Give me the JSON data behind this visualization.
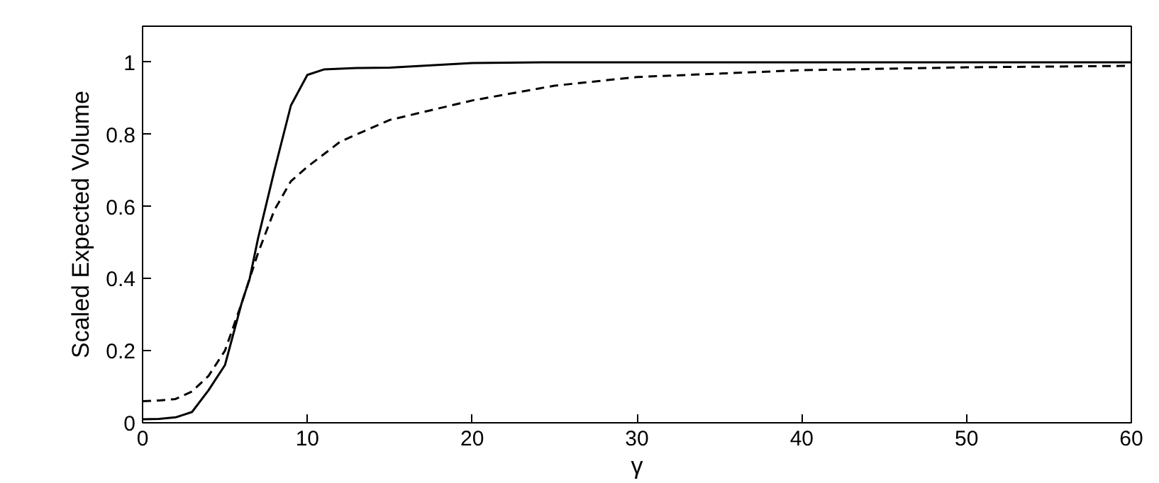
{
  "chart_data": {
    "type": "line",
    "xlabel": "γ",
    "ylabel": "Scaled Expected Volume",
    "xlim": [
      0,
      60
    ],
    "ylim": [
      0,
      1.1
    ],
    "xticks": [
      0,
      10,
      20,
      30,
      40,
      50,
      60
    ],
    "yticks": [
      0,
      0.2,
      0.4,
      0.6,
      0.8,
      1
    ],
    "grid": false,
    "series": [
      {
        "color": "#000000",
        "line_style": "solid",
        "x": [
          0,
          1,
          2,
          3,
          4,
          5,
          6,
          6.5,
          7,
          8,
          9,
          10,
          11,
          13,
          15,
          20,
          25,
          30,
          40,
          50,
          60
        ],
        "values": [
          0.01,
          0.011,
          0.015,
          0.03,
          0.09,
          0.16,
          0.33,
          0.4,
          0.51,
          0.7,
          0.88,
          0.965,
          0.98,
          0.984,
          0.985,
          0.998,
          1,
          1,
          1,
          1,
          1
        ]
      },
      {
        "color": "#000000",
        "line_style": "dashed",
        "x": [
          0,
          1,
          2,
          3,
          4,
          5,
          6,
          7,
          8,
          9,
          10,
          12,
          15,
          20,
          25,
          30,
          40,
          50,
          60
        ],
        "values": [
          0.06,
          0.062,
          0.066,
          0.087,
          0.13,
          0.2,
          0.33,
          0.47,
          0.59,
          0.67,
          0.71,
          0.78,
          0.84,
          0.894,
          0.935,
          0.959,
          0.978,
          0.986,
          0.99
        ]
      }
    ]
  }
}
